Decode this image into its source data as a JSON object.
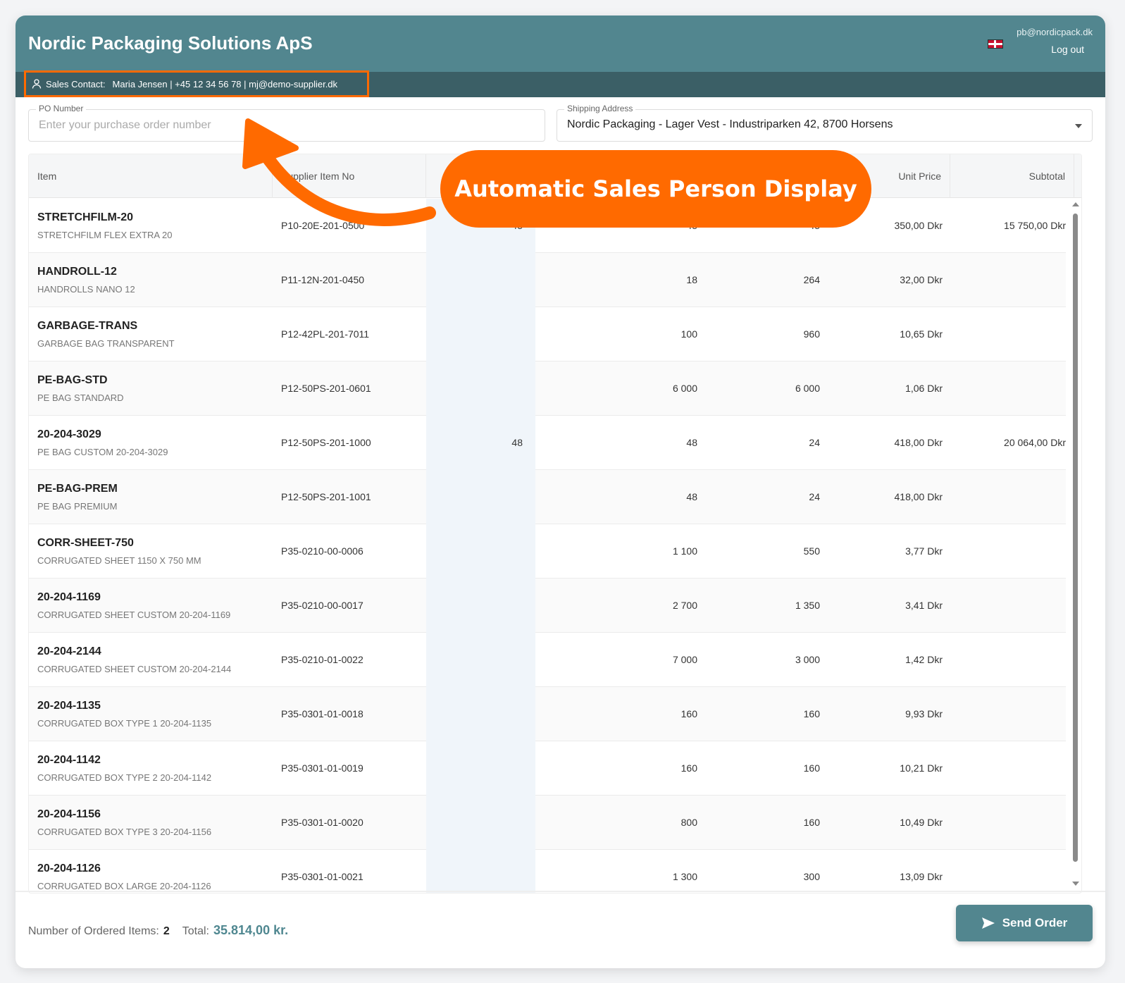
{
  "header": {
    "title": "Nordic Packaging Solutions ApS",
    "user_email": "pb@nordicpack.dk",
    "logout_label": "Log out",
    "language_icon": "uk-flag-icon"
  },
  "sales_contact": {
    "label": "Sales Contact:",
    "value": "Maria Jensen | +45 12 34 56 78 | mj@demo-supplier.dk"
  },
  "po_number": {
    "label": "PO Number",
    "value": "",
    "placeholder": "Enter your purchase order number"
  },
  "shipping": {
    "label": "Shipping Address",
    "value": "Nordic Packaging - Lager Vest - Industriparken 42, 8700 Horsens"
  },
  "table": {
    "columns": {
      "item": "Item",
      "supplier_item_no": "Supplier Item No",
      "unit_price": "Unit Price",
      "subtotal": "Subtotal"
    },
    "rows": [
      {
        "code": "STRETCHFILM-20",
        "desc": "STRETCHFILM FLEX EXTRA 20",
        "sup": "P10-20E-201-0500",
        "qty": "45",
        "c4": "45",
        "c5": "45",
        "price": "350,00 Dkr",
        "subtotal": "15 750,00 Dkr"
      },
      {
        "code": "HANDROLL-12",
        "desc": "HANDROLLS NANO 12",
        "sup": "P11-12N-201-0450",
        "qty": "",
        "c4": "18",
        "c5": "264",
        "price": "32,00 Dkr",
        "subtotal": ""
      },
      {
        "code": "GARBAGE-TRANS",
        "desc": "GARBAGE BAG TRANSPARENT",
        "sup": "P12-42PL-201-7011",
        "qty": "",
        "c4": "100",
        "c5": "960",
        "price": "10,65 Dkr",
        "subtotal": ""
      },
      {
        "code": "PE-BAG-STD",
        "desc": "PE BAG STANDARD",
        "sup": "P12-50PS-201-0601",
        "qty": "",
        "c4": "6 000",
        "c5": "6 000",
        "price": "1,06 Dkr",
        "subtotal": ""
      },
      {
        "code": "20-204-3029",
        "desc": "PE BAG CUSTOM 20-204-3029",
        "sup": "P12-50PS-201-1000",
        "qty": "48",
        "c4": "48",
        "c5": "24",
        "price": "418,00 Dkr",
        "subtotal": "20 064,00 Dkr"
      },
      {
        "code": "PE-BAG-PREM",
        "desc": "PE BAG PREMIUM",
        "sup": "P12-50PS-201-1001",
        "qty": "",
        "c4": "48",
        "c5": "24",
        "price": "418,00 Dkr",
        "subtotal": ""
      },
      {
        "code": "CORR-SHEET-750",
        "desc": "CORRUGATED SHEET 1150 X 750 MM",
        "sup": "P35-0210-00-0006",
        "qty": "",
        "c4": "1 100",
        "c5": "550",
        "price": "3,77 Dkr",
        "subtotal": ""
      },
      {
        "code": "20-204-1169",
        "desc": "CORRUGATED SHEET CUSTOM 20-204-1169",
        "sup": "P35-0210-00-0017",
        "qty": "",
        "c4": "2 700",
        "c5": "1 350",
        "price": "3,41 Dkr",
        "subtotal": ""
      },
      {
        "code": "20-204-2144",
        "desc": "CORRUGATED SHEET CUSTOM 20-204-2144",
        "sup": "P35-0210-01-0022",
        "qty": "",
        "c4": "7 000",
        "c5": "3 000",
        "price": "1,42 Dkr",
        "subtotal": ""
      },
      {
        "code": "20-204-1135",
        "desc": "CORRUGATED BOX TYPE 1 20-204-1135",
        "sup": "P35-0301-01-0018",
        "qty": "",
        "c4": "160",
        "c5": "160",
        "price": "9,93 Dkr",
        "subtotal": ""
      },
      {
        "code": "20-204-1142",
        "desc": "CORRUGATED BOX TYPE 2 20-204-1142",
        "sup": "P35-0301-01-0019",
        "qty": "",
        "c4": "160",
        "c5": "160",
        "price": "10,21 Dkr",
        "subtotal": ""
      },
      {
        "code": "20-204-1156",
        "desc": "CORRUGATED BOX TYPE 3 20-204-1156",
        "sup": "P35-0301-01-0020",
        "qty": "",
        "c4": "800",
        "c5": "160",
        "price": "10,49 Dkr",
        "subtotal": ""
      },
      {
        "code": "20-204-1126",
        "desc": "CORRUGATED BOX LARGE 20-204-1126",
        "sup": "P35-0301-01-0021",
        "qty": "",
        "c4": "1 300",
        "c5": "300",
        "price": "13,09 Dkr",
        "subtotal": ""
      }
    ]
  },
  "footer": {
    "items_label": "Number of Ordered Items:",
    "items_count": "2",
    "total_label": "Total:",
    "total_value": "35.814,00 kr.",
    "send_label": "Send Order"
  },
  "callout": {
    "text": "Automatic Sales Person Display",
    "color": "#ff6a00"
  },
  "colors": {
    "header": "#52868f",
    "subheader": "#3b5f66",
    "accent": "#4f8790"
  }
}
